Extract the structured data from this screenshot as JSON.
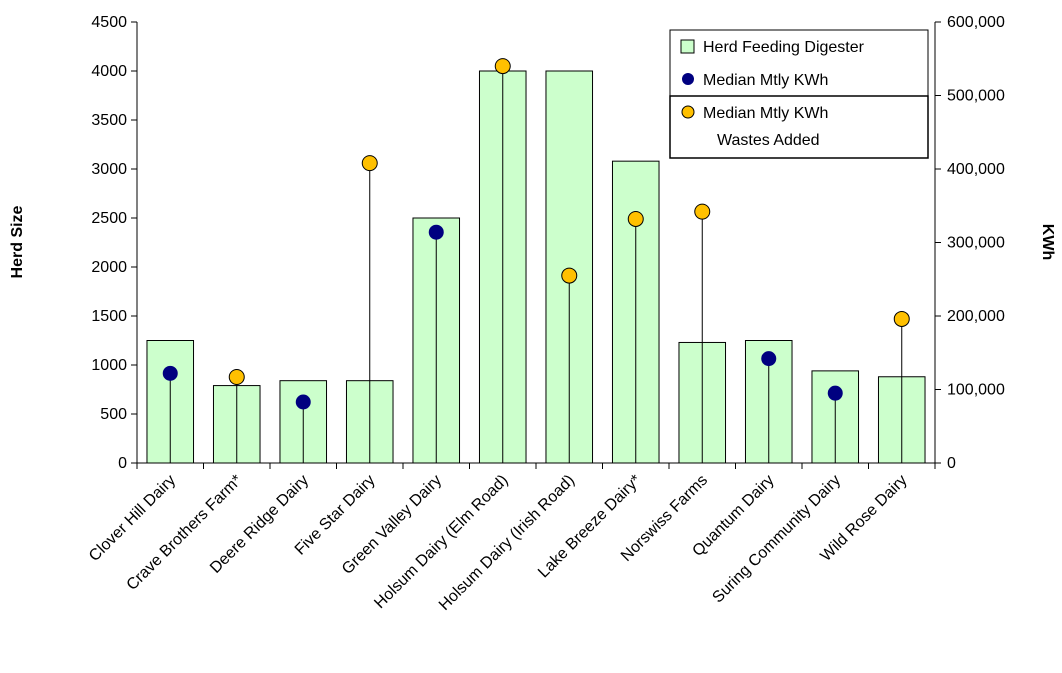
{
  "chart_data": {
    "type": "bar",
    "categories": [
      "Clover Hill Dairy",
      "Crave Brothers Farm*",
      "Deere Ridge Dairy",
      "Five Star Dairy",
      "Green Valley Dairy",
      "Holsum Dairy (Elm Road)",
      "Holsum Dairy (Irish Road)",
      "Lake Breeze Dairy*",
      "Norswiss Farms",
      "Quantum Dairy",
      "Suring Community Dairy",
      "Wild Rose Dairy"
    ],
    "series": [
      {
        "name": "Herd Feeding Digester",
        "kind": "bar",
        "axis": "left",
        "values": [
          1250,
          790,
          840,
          840,
          2500,
          4000,
          4000,
          3080,
          1230,
          1250,
          940,
          880
        ]
      },
      {
        "name": "Median Mtly KWh",
        "kind": "lollipop",
        "axis": "right",
        "values": [
          122000,
          null,
          83000,
          null,
          314000,
          null,
          null,
          null,
          null,
          142000,
          95000,
          null
        ]
      },
      {
        "name": "Median Mtly KWh Wastes Added",
        "kind": "lollipop",
        "axis": "right",
        "values": [
          null,
          117000,
          null,
          408000,
          null,
          540000,
          255000,
          332000,
          342000,
          null,
          null,
          196000
        ]
      }
    ],
    "ylabel": "Herd Size",
    "y2label": "KWh",
    "ylim": [
      0,
      4500
    ],
    "y2lim": [
      0,
      600000
    ],
    "yticks": [
      0,
      500,
      1000,
      1500,
      2000,
      2500,
      3000,
      3500,
      4000,
      4500
    ],
    "y2ticks": [
      0,
      100000,
      200000,
      300000,
      400000,
      500000,
      600000
    ],
    "y2tick_labels": [
      "0",
      "100,000",
      "200,000",
      "300,000",
      "400,000",
      "500,000",
      "600,000"
    ],
    "grid": false,
    "legend_position": "top-right",
    "legend": {
      "bar_label": "Herd Feeding Digester",
      "navy_label": "Median Mtly KWh",
      "gold_label_line1": "Median Mtly KWh",
      "gold_label_line2": "Wastes Added"
    },
    "colors": {
      "bar_fill": "#ccffcc",
      "bar_stroke": "#000000",
      "navy_dot": "#000080",
      "gold_dot": "#ffc000"
    }
  }
}
